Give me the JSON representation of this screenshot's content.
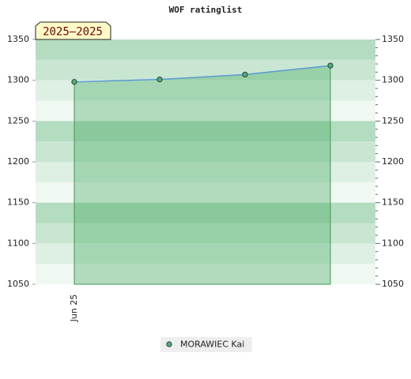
{
  "chart_data": {
    "type": "line",
    "title": "WOF ratinglist",
    "badge": "2025–2025",
    "categories": [
      "Jun 25",
      null,
      null,
      null
    ],
    "series": [
      {
        "name": "MORAWIEC Kai",
        "color": "#5b9bd5",
        "marker_color": "#4caf6a",
        "values": [
          1298,
          1301,
          1307,
          1318
        ]
      }
    ],
    "ylim": [
      1050,
      1350
    ],
    "yticks": [
      1050,
      1100,
      1150,
      1200,
      1250,
      1300,
      1350
    ],
    "y2lim": [
      1050,
      1350
    ],
    "y2ticks": [
      1050,
      1100,
      1150,
      1200,
      1250,
      1300,
      1350
    ],
    "fill": true,
    "legend": "bottom"
  }
}
